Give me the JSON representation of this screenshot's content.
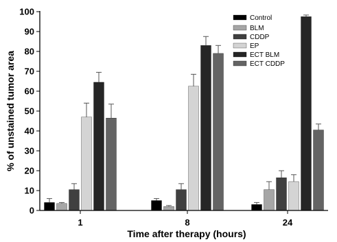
{
  "chart_data": {
    "type": "bar",
    "xlabel": "Time after therapy (hours)",
    "ylabel": "% of unstained tumor area",
    "ylim": [
      0,
      100
    ],
    "yticks": [
      0,
      10,
      20,
      30,
      40,
      50,
      60,
      70,
      80,
      90,
      100
    ],
    "categories": [
      "1",
      "8",
      "24"
    ],
    "legend_position": "top-right",
    "grid": false,
    "series": [
      {
        "name": "Control",
        "color": "#000000",
        "values": [
          4.0,
          5.0,
          3.0
        ],
        "errors": [
          2.0,
          1.0,
          1.0
        ]
      },
      {
        "name": "BLM",
        "color": "#a6a6a6",
        "values": [
          3.5,
          2.0,
          10.5
        ],
        "errors": [
          0.5,
          0.5,
          4.0
        ]
      },
      {
        "name": "CDDP",
        "color": "#404040",
        "values": [
          10.5,
          10.5,
          16.5
        ],
        "errors": [
          3.0,
          3.0,
          3.5
        ]
      },
      {
        "name": "EP",
        "color": "#d4d4d4",
        "values": [
          47.0,
          62.5,
          14.5
        ],
        "errors": [
          7.0,
          6.0,
          3.5
        ]
      },
      {
        "name": "ECT BLM",
        "color": "#262626",
        "values": [
          64.5,
          83.0,
          97.5
        ],
        "errors": [
          5.0,
          4.5,
          0.8
        ]
      },
      {
        "name": "ECT CDDP",
        "color": "#646464",
        "values": [
          46.5,
          79.0,
          40.5
        ],
        "errors": [
          7.0,
          4.0,
          3.0
        ]
      }
    ]
  }
}
